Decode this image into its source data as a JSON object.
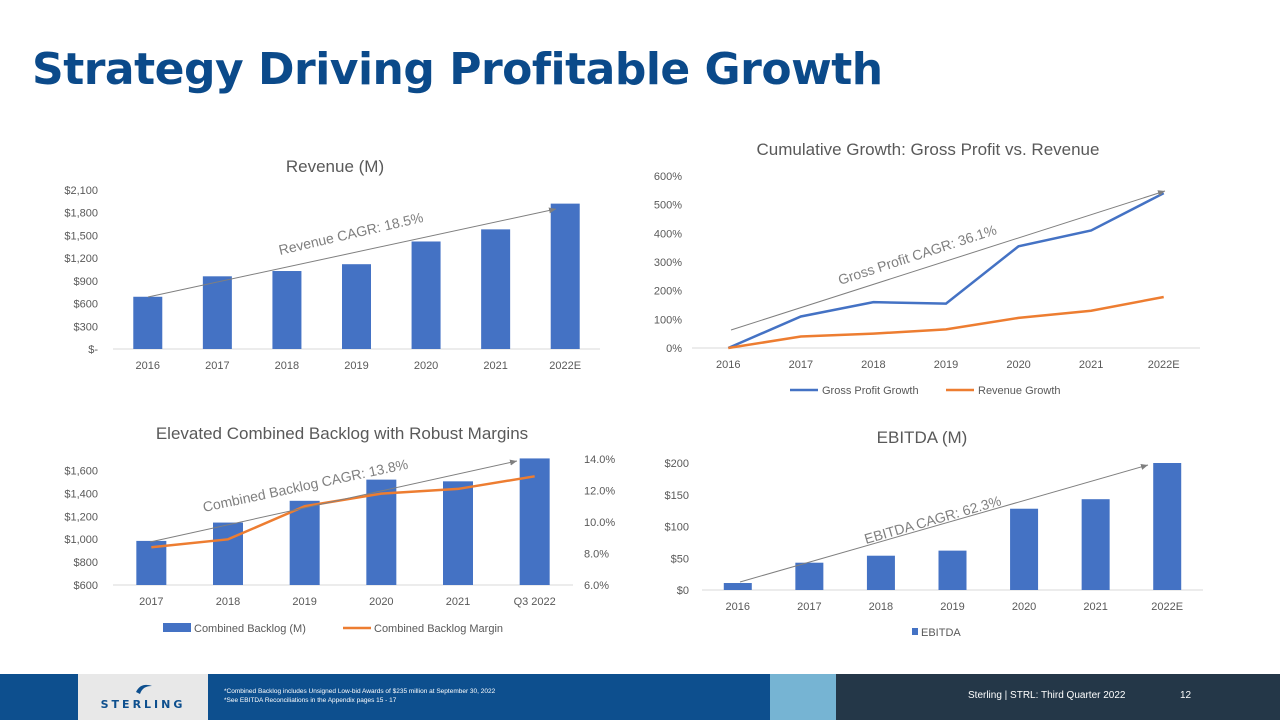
{
  "page": {
    "title": "Strategy Driving Profitable Growth"
  },
  "chart_data": [
    {
      "id": "revenue",
      "type": "bar",
      "title": "Revenue (M)",
      "categories": [
        "2016",
        "2017",
        "2018",
        "2019",
        "2020",
        "2021",
        "2022E"
      ],
      "values": [
        690,
        960,
        1030,
        1120,
        1420,
        1580,
        1920
      ],
      "yticks": [
        "$-",
        "$300",
        "$600",
        "$900",
        "$1,200",
        "$1,500",
        "$1,800",
        "$2,100"
      ],
      "ylim": [
        0,
        2100
      ],
      "annotation": "Revenue CAGR:  18.5%",
      "color": "#4472c4",
      "grid": false
    },
    {
      "id": "cumulative",
      "type": "line",
      "title": "Cumulative Growth:  Gross Profit vs. Revenue",
      "categories": [
        "2016",
        "2017",
        "2018",
        "2019",
        "2020",
        "2021",
        "2022E"
      ],
      "series": [
        {
          "name": "Gross Profit Growth",
          "values": [
            0,
            110,
            160,
            155,
            355,
            410,
            540
          ],
          "color": "#4472c4"
        },
        {
          "name": "Revenue Growth",
          "values": [
            0,
            40,
            50,
            65,
            105,
            130,
            178
          ],
          "color": "#ed7d31"
        }
      ],
      "yticks": [
        "0%",
        "100%",
        "200%",
        "300%",
        "400%",
        "500%",
        "600%"
      ],
      "ylim": [
        0,
        600
      ],
      "annotation": "Gross Profit CAGR:  36.1%",
      "legend": "bottom"
    },
    {
      "id": "backlog",
      "type": "bar",
      "title": "Elevated Combined Backlog with Robust Margins",
      "categories": [
        "2017",
        "2018",
        "2019",
        "2020",
        "2021",
        "Q3 2022"
      ],
      "series": [
        {
          "name": "Combined Backlog (M)",
          "values": [
            985,
            1145,
            1335,
            1520,
            1505,
            1705
          ],
          "color": "#4472c4"
        },
        {
          "name": "Combined Backlog Margin",
          "values": [
            8.4,
            8.9,
            11.0,
            11.8,
            12.1,
            12.9
          ],
          "color": "#ed7d31",
          "axis": "right"
        }
      ],
      "yticks": [
        "$600",
        "$800",
        "$1,000",
        "$1,200",
        "$1,400",
        "$1,600"
      ],
      "ylim": [
        600,
        1700
      ],
      "y2ticks": [
        "6.0%",
        "8.0%",
        "10.0%",
        "12.0%",
        "14.0%"
      ],
      "y2lim": [
        6,
        14
      ],
      "annotation": "Combined Backlog CAGR:  13.8%",
      "legend": "bottom"
    },
    {
      "id": "ebitda",
      "type": "bar",
      "title": "EBITDA (M)",
      "categories": [
        "2016",
        "2017",
        "2018",
        "2019",
        "2020",
        "2021",
        "2022E"
      ],
      "values": [
        11,
        43,
        54,
        62,
        128,
        143,
        200
      ],
      "yticks": [
        "$0",
        "$50",
        "$100",
        "$150",
        "$200"
      ],
      "ylim": [
        0,
        200
      ],
      "annotation": "EBITDA CAGR:  62.3%",
      "legend_label": "EBITDA",
      "color": "#4472c4",
      "legend": "bottom"
    }
  ],
  "footer": {
    "logo": "STERLING",
    "note1": "*Combined Backlog includes Unsigned Low-bid Awards of $235 million at September 30, 2022",
    "note2": "*See EBITDA Reconciliations in the Appendix pages 15 - 17",
    "company": "Sterling | STRL:  Third Quarter  2022",
    "page_number": "12"
  },
  "colors": {
    "title": "#0b4a8a",
    "footer_blue": "#0d4f8e",
    "footer_navy": "#243748",
    "footer_light": "#76b4d3"
  }
}
